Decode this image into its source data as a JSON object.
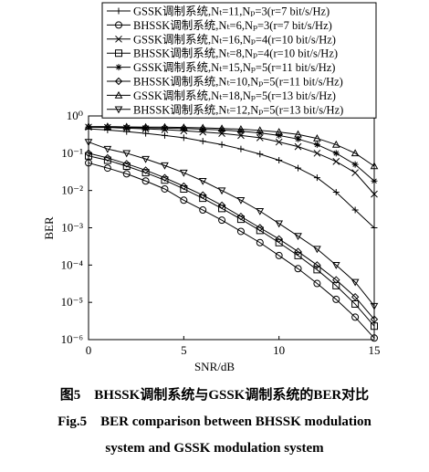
{
  "chart_data": {
    "type": "line",
    "log_y": true,
    "xlabel": "SNR/dB",
    "ylabel": "BER",
    "x": [
      0,
      1,
      2,
      3,
      4,
      5,
      6,
      7,
      8,
      9,
      10,
      11,
      12,
      13,
      14,
      15
    ],
    "xlim": [
      0,
      15
    ],
    "xticks": [
      0,
      5,
      10,
      15
    ],
    "ylim": [
      1e-06,
      1
    ],
    "yticks": [
      {
        "value": 1,
        "label": "10⁰"
      },
      {
        "value": 0.1,
        "label": "10⁻¹"
      },
      {
        "value": 0.01,
        "label": "10⁻²"
      },
      {
        "value": 0.001,
        "label": "10⁻³"
      },
      {
        "value": 0.0001,
        "label": "10⁻⁴"
      },
      {
        "value": 1e-05,
        "label": "10⁻⁵"
      },
      {
        "value": 1e-06,
        "label": "10⁻⁶"
      }
    ],
    "series": [
      {
        "name": "GSSK调制系统,Nₜ=11,Nₚ=3(r=7 bit/s/Hz)",
        "color": "#000000",
        "marker": "plus",
        "values": [
          0.45,
          0.42,
          0.38,
          0.34,
          0.3,
          0.26,
          0.21,
          0.17,
          0.13,
          0.095,
          0.065,
          0.04,
          0.022,
          0.009,
          0.003,
          0.001
        ]
      },
      {
        "name": "BHSSK调制系统,Nₜ=6,Nₚ=3(r=7 bit/s/Hz)",
        "color": "#000000",
        "marker": "circle",
        "values": [
          0.055,
          0.04,
          0.028,
          0.018,
          0.011,
          0.0055,
          0.003,
          0.0016,
          0.0008,
          0.0004,
          0.00018,
          8e-05,
          3.2e-05,
          1.2e-05,
          4e-06,
          1.1e-06
        ]
      },
      {
        "name": "GSSK调制系统,Nₜ=16,Nₚ=4(r=10 bit/s/Hz)",
        "color": "#000000",
        "marker": "x",
        "values": [
          0.5,
          0.49,
          0.47,
          0.45,
          0.43,
          0.4,
          0.37,
          0.34,
          0.3,
          0.26,
          0.2,
          0.15,
          0.1,
          0.06,
          0.03,
          0.008
        ]
      },
      {
        "name": "BHSSK调制系统,Nₜ=8,Nₚ=4(r=10 bit/s/Hz)",
        "color": "#000000",
        "marker": "square",
        "values": [
          0.085,
          0.065,
          0.045,
          0.03,
          0.019,
          0.011,
          0.0062,
          0.0033,
          0.0017,
          0.00085,
          0.0004,
          0.00018,
          7.5e-05,
          2.8e-05,
          9e-06,
          2.3e-06
        ]
      },
      {
        "name": "GSSK调制系统,Nₜ=15,Nₚ=5(r=11 bit/s/Hz)",
        "color": "#000000",
        "marker": "star",
        "values": [
          0.5,
          0.5,
          0.49,
          0.48,
          0.47,
          0.46,
          0.44,
          0.42,
          0.39,
          0.35,
          0.3,
          0.24,
          0.17,
          0.1,
          0.05,
          0.018
        ]
      },
      {
        "name": "BHSSK调制系统,Nₜ=10,Nₚ=5(r=11 bit/s/Hz)",
        "color": "#000000",
        "marker": "diamond",
        "values": [
          0.1,
          0.075,
          0.052,
          0.035,
          0.022,
          0.013,
          0.0075,
          0.004,
          0.002,
          0.001,
          0.0005,
          0.00023,
          0.0001,
          4e-05,
          1.4e-05,
          3.5e-06
        ]
      },
      {
        "name": "GSSK调制系统,Nₜ=18,Nₚ=5(r=13 bit/s/Hz)",
        "color": "#000000",
        "marker": "triangle-up",
        "values": [
          0.52,
          0.52,
          0.51,
          0.5,
          0.5,
          0.49,
          0.48,
          0.46,
          0.44,
          0.41,
          0.37,
          0.32,
          0.25,
          0.17,
          0.1,
          0.045
        ]
      },
      {
        "name": "BHSSK调制系统,Nₜ=12,Nₚ=5(r=13 bit/s/Hz)",
        "color": "#000000",
        "marker": "triangle-down",
        "values": [
          0.2,
          0.13,
          0.1,
          0.07,
          0.047,
          0.03,
          0.018,
          0.01,
          0.0055,
          0.0028,
          0.0013,
          0.0006,
          0.00027,
          0.0001,
          3.5e-05,
          8e-06
        ]
      }
    ],
    "caption": [
      "图5　BHSSK调制系统与GSSK调制系统的BER对比",
      "Fig.5　BER comparison between BHSSK modulation",
      "system and GSSK modulation system"
    ]
  }
}
